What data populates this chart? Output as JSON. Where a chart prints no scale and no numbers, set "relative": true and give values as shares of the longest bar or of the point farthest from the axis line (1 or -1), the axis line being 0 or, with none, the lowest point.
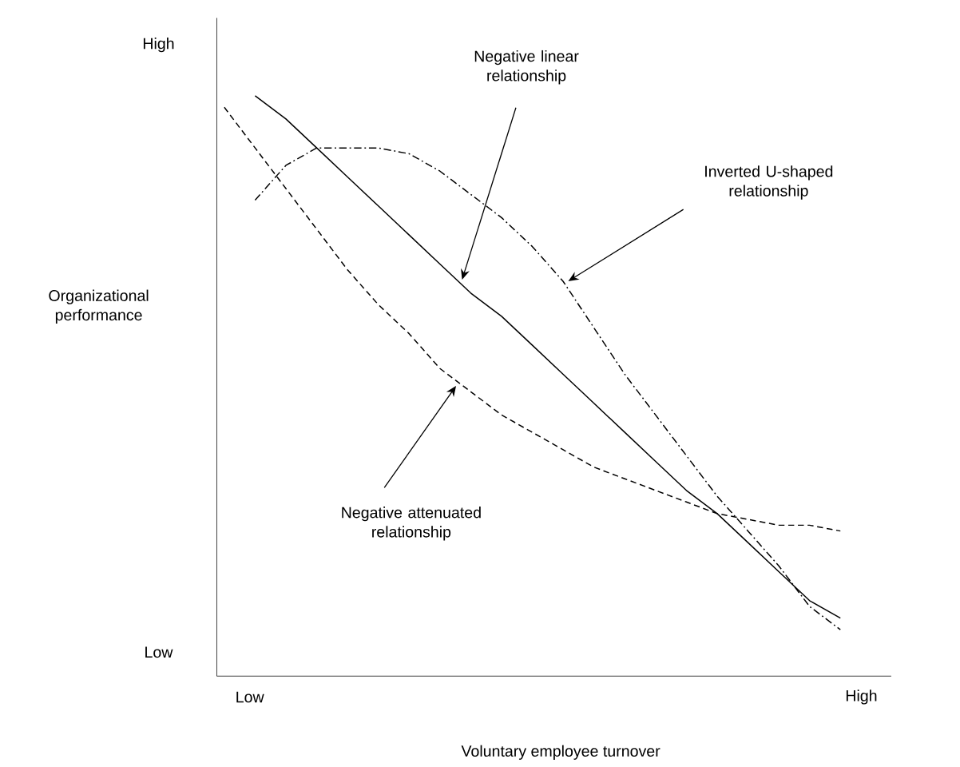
{
  "chart_data": {
    "type": "line",
    "relative": true,
    "xlabel": "Voluntary employee turnover",
    "ylabel": "Organizational performance",
    "categories": [
      null,
      null,
      null,
      null,
      null,
      null,
      null,
      null,
      null,
      null,
      null,
      null,
      null,
      null,
      null,
      null,
      null,
      null,
      null,
      null,
      null
    ],
    "series": [
      {
        "color": "#000000",
        "line_style": "solid",
        "values": [
          null,
          1,
          0.96,
          0.91,
          0.86,
          0.81,
          0.76,
          0.71,
          0.66,
          0.62,
          0.57,
          0.52,
          0.47,
          0.42,
          0.37,
          0.32,
          0.28,
          0.23,
          0.18,
          0.13,
          0.1
        ]
      },
      {
        "color": "#000000",
        "line_style": "dashed",
        "values": [
          0.98,
          0.91,
          0.84,
          0.77,
          0.7,
          0.64,
          0.59,
          0.53,
          0.49,
          0.45,
          0.42,
          0.39,
          0.36,
          0.34,
          0.32,
          0.3,
          0.28,
          0.27,
          0.26,
          0.26,
          0.25
        ]
      },
      {
        "color": "#000000",
        "line_style": "dashdot",
        "values": [
          null,
          0.82,
          0.88,
          0.91,
          0.91,
          0.91,
          0.9,
          0.87,
          0.83,
          0.79,
          0.74,
          0.68,
          0.6,
          0.52,
          0.45,
          0.38,
          0.31,
          0.25,
          0.19,
          0.12,
          0.08
        ]
      }
    ],
    "annotations": [
      "High",
      "Low",
      "Low",
      "High",
      "Negative linear relationship",
      "Inverted U-shaped relationship",
      "Negative attenuated relationship"
    ]
  }
}
